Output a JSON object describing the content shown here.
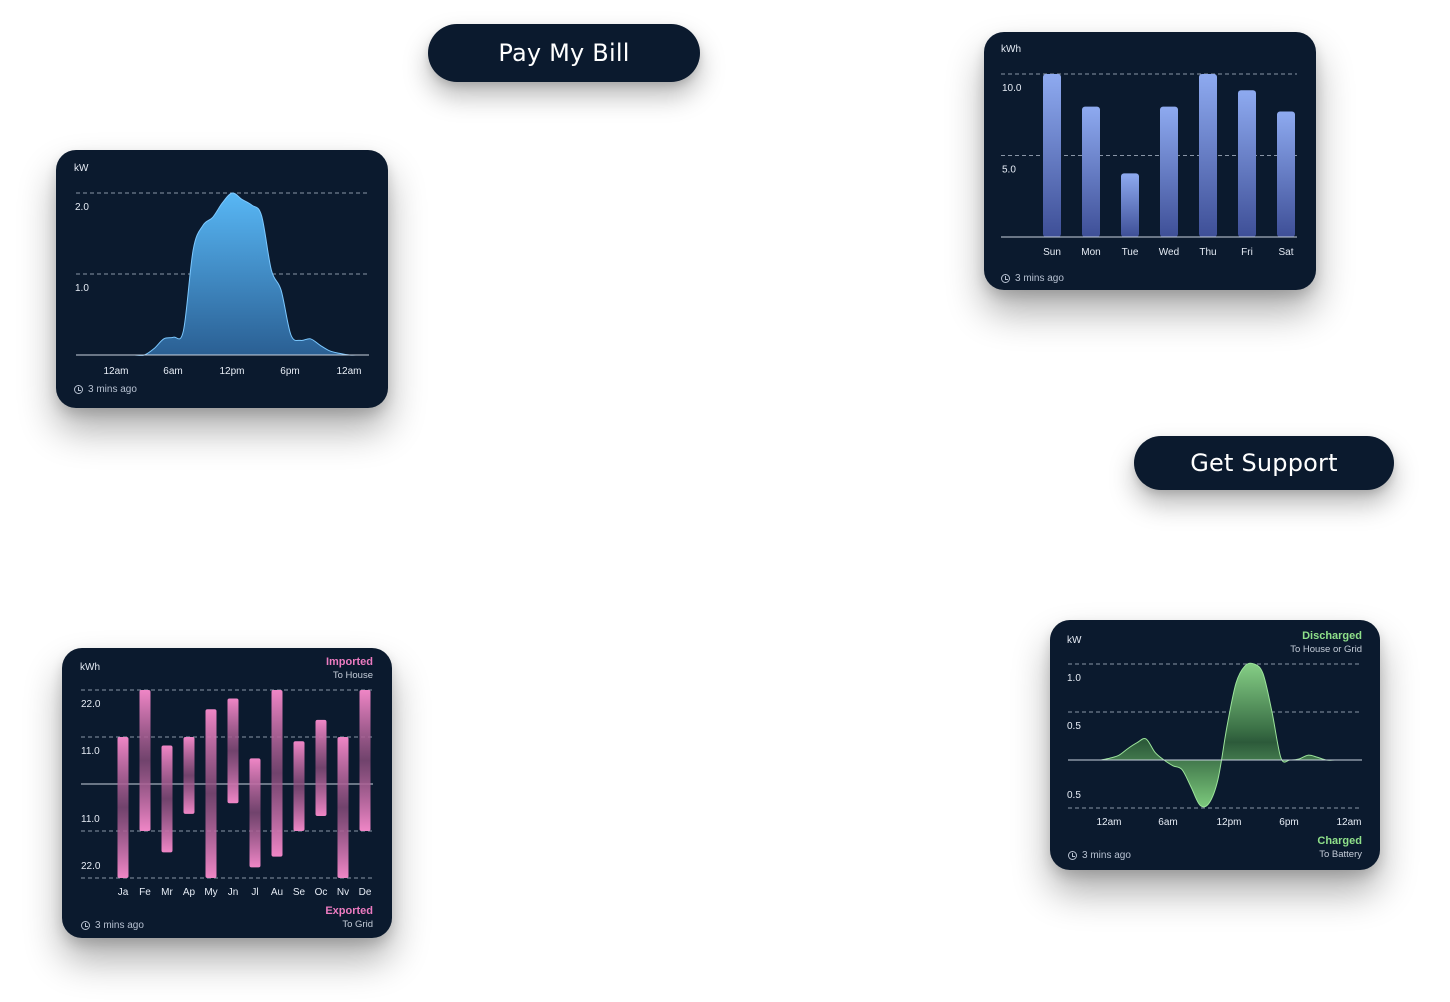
{
  "buttons": {
    "pay_bill": "Pay My Bill",
    "get_support": "Get Support"
  },
  "updated": "3 mins ago",
  "icons": {
    "clock": "clock-icon"
  },
  "colors": {
    "card_bg": "#0b1a2e",
    "power_blue": "#58b7f5",
    "weekly_bar": "#8ea9ee",
    "imported_pink": "#ec7bc0",
    "battery_green": "#7fcf7f"
  },
  "cards": {
    "power": {
      "unit": "kW",
      "updated": "3 mins ago",
      "chart_data": {
        "type": "area",
        "ylabel": "kW",
        "y_ticks": [
          "2.0",
          "1.0"
        ],
        "ylim": [
          0,
          2.0
        ],
        "x_ticks": [
          "12am",
          "6am",
          "12pm",
          "6pm",
          "12am"
        ],
        "x_hours": [
          0,
          1,
          2,
          3,
          4,
          5,
          6,
          7,
          8,
          9,
          10,
          11,
          12,
          13,
          14,
          15,
          16,
          17,
          18,
          19,
          20,
          21,
          22,
          23,
          24,
          25,
          26,
          27,
          28,
          29,
          30
        ],
        "values": [
          0,
          0,
          0,
          0,
          0,
          0,
          0,
          0,
          0.08,
          0.2,
          0.22,
          0.3,
          1.3,
          1.6,
          1.7,
          1.88,
          2.0,
          1.92,
          1.85,
          1.72,
          1.05,
          0.8,
          0.25,
          0.18,
          0.2,
          0.12,
          0.05,
          0.02,
          0,
          0,
          0
        ],
        "grid": true
      }
    },
    "weekly": {
      "unit": "kWh",
      "updated": "3 mins ago",
      "chart_data": {
        "type": "bar",
        "ylabel": "kWh",
        "y_ticks": [
          "10.0",
          "5.0"
        ],
        "ylim": [
          0,
          10.0
        ],
        "categories": [
          "Sun",
          "Mon",
          "Tue",
          "Wed",
          "Thu",
          "Fri",
          "Sat"
        ],
        "values": [
          10.0,
          8.0,
          3.9,
          8.0,
          10.0,
          9.0,
          7.7
        ],
        "grid": true
      }
    },
    "monthly": {
      "unit": "kWh",
      "updated": "3 mins ago",
      "legend_top": {
        "title": "Imported",
        "subtitle": "To House"
      },
      "legend_bottom": {
        "title": "Exported",
        "subtitle": "To Grid"
      },
      "chart_data": {
        "type": "bar",
        "ylabel": "kWh",
        "y_ticks_top": [
          "22.0",
          "11.0"
        ],
        "y_ticks_bottom": [
          "11.0",
          "22.0"
        ],
        "ylim": [
          -22.0,
          22.0
        ],
        "categories": [
          "Ja",
          "Fe",
          "Mr",
          "Ap",
          "My",
          "Jn",
          "Jl",
          "Au",
          "Se",
          "Oc",
          "Nv",
          "De"
        ],
        "series": [
          {
            "name": "Imported",
            "values": [
              11.0,
              22.0,
              9.0,
              11.0,
              17.5,
              20.0,
              6.0,
              22.0,
              10.0,
              15.0,
              11.0,
              22.0
            ]
          },
          {
            "name": "Exported",
            "values": [
              22.0,
              11.0,
              16.0,
              7.0,
              22.0,
              4.5,
              19.5,
              17.0,
              11.0,
              7.5,
              22.0,
              11.0
            ]
          }
        ],
        "grid": true
      }
    },
    "battery": {
      "unit": "kW",
      "updated": "3 mins ago",
      "legend_top": {
        "title": "Discharged",
        "subtitle": "To House or Grid"
      },
      "legend_bottom": {
        "title": "Charged",
        "subtitle": "To Battery"
      },
      "chart_data": {
        "type": "area",
        "ylabel": "kW",
        "y_ticks_top": [
          "1.0",
          "0.5"
        ],
        "y_ticks_bottom": [
          "0.5"
        ],
        "ylim": [
          -0.5,
          1.0
        ],
        "x_ticks": [
          "12am",
          "6am",
          "12pm",
          "6pm",
          "12am"
        ],
        "x_hours": [
          0,
          1,
          2,
          3,
          4,
          5,
          6,
          7,
          8,
          9,
          10,
          11,
          12,
          13,
          14,
          15,
          16,
          17,
          18,
          19,
          20,
          21,
          22,
          23,
          24,
          25,
          26,
          27,
          28,
          29
        ],
        "values": [
          0.0,
          0.02,
          0.05,
          0.12,
          0.18,
          0.22,
          0.08,
          0.0,
          -0.06,
          -0.1,
          -0.28,
          -0.47,
          -0.45,
          -0.2,
          0.35,
          0.8,
          0.98,
          1.0,
          0.9,
          0.5,
          0.02,
          0.0,
          0.01,
          0.05,
          0.03,
          0.0,
          0.0,
          0.0,
          0.0,
          0.0
        ],
        "grid": true
      }
    }
  }
}
